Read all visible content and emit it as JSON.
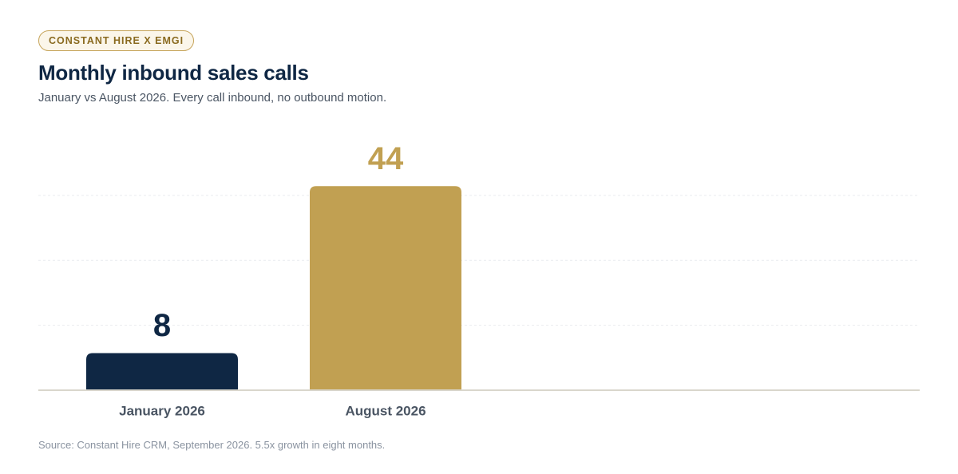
{
  "chart_data": {
    "type": "bar",
    "badge": "CONSTANT HIRE X EMGI",
    "title": "Monthly inbound sales calls",
    "subtitle": "January vs August 2026. Every call inbound, no outbound motion.",
    "source": "Source: Constant Hire CRM, September 2026. 5.5x growth in eight months.",
    "categories": [
      "January 2026",
      "August 2026"
    ],
    "values": [
      8,
      44
    ],
    "colors": [
      "#0f2744",
      "#c1a052"
    ],
    "ylim": [
      0,
      42.5
    ],
    "yticks": [
      0,
      14,
      28,
      42
    ],
    "grid": true
  }
}
